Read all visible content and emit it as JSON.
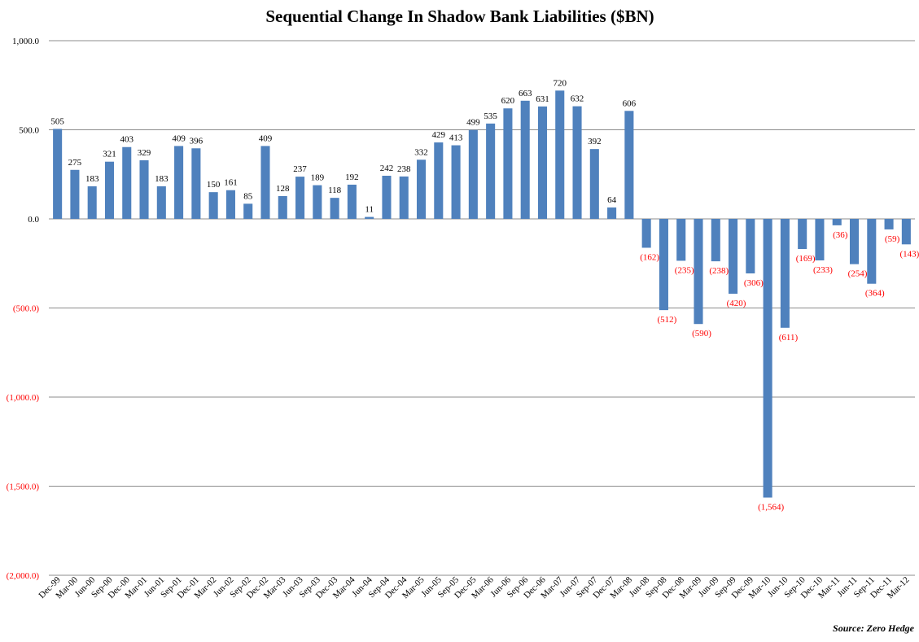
{
  "chart_data": {
    "type": "bar",
    "title": "Sequential Change In Shadow Bank Liabilities ($BN)",
    "source": "Source: Zero Hedge",
    "ylim": [
      -2000,
      1000
    ],
    "y_ticks": [
      {
        "value": 1000,
        "label": "1,000.0"
      },
      {
        "value": 500,
        "label": "500.0"
      },
      {
        "value": 0,
        "label": "0.0"
      },
      {
        "value": -500,
        "label": "(500.0)"
      },
      {
        "value": -1000,
        "label": "(1,000.0)"
      },
      {
        "value": -1500,
        "label": "(1,500.0)"
      },
      {
        "value": -2000,
        "label": "(2,000.0)"
      }
    ],
    "categories": [
      "Dec-99",
      "Mar-00",
      "Jun-00",
      "Sep-00",
      "Dec-00",
      "Mar-01",
      "Jun-01",
      "Sep-01",
      "Dec-01",
      "Mar-02",
      "Jun-02",
      "Sep-02",
      "Dec-02",
      "Mar-03",
      "Jun-03",
      "Sep-03",
      "Dec-03",
      "Mar-04",
      "Jun-04",
      "Sep-04",
      "Dec-04",
      "Mar-05",
      "Jun-05",
      "Sep-05",
      "Dec-05",
      "Mar-06",
      "Jun-06",
      "Sep-06",
      "Dec-06",
      "Mar-07",
      "Jun-07",
      "Sep-07",
      "Dec-07",
      "Mar-08",
      "Jun-08",
      "Sep-08",
      "Dec-08",
      "Mar-09",
      "Jun-09",
      "Sep-09",
      "Dec-09",
      "Mar-10",
      "Jun-10",
      "Sep-10",
      "Dec-10",
      "Mar-11",
      "Jun-11",
      "Sep-11",
      "Dec-11",
      "Mar-12"
    ],
    "values": [
      505,
      275,
      183,
      321,
      403,
      329,
      183,
      409,
      396,
      150,
      161,
      85,
      409,
      128,
      237,
      189,
      118,
      192,
      11,
      242,
      238,
      332,
      429,
      413,
      499,
      535,
      620,
      663,
      631,
      720,
      632,
      392,
      64,
      606,
      -162,
      -512,
      -235,
      -590,
      -238,
      -420,
      -306,
      -1564,
      -611,
      -169,
      -233,
      -36,
      -254,
      -364,
      -59,
      -143
    ],
    "value_labels": [
      "505",
      "275",
      "183",
      "321",
      "403",
      "329",
      "183",
      "409",
      "396",
      "150",
      "161",
      "85",
      "409",
      "128",
      "237",
      "189",
      "118",
      "192",
      "11",
      "242",
      "238",
      "332",
      "429",
      "413",
      "499",
      "535",
      "620",
      "663",
      "631",
      "720",
      "632",
      "392",
      "64",
      "606",
      "(162)",
      "(512)",
      "(235)",
      "(590)",
      "(238)",
      "(420)",
      "(306)",
      "(1,564)",
      "(611)",
      "(169)",
      "(233)",
      "(36)",
      "(254)",
      "(364)",
      "(59)",
      "(143)"
    ],
    "colors": {
      "bar": "#4f81bd",
      "negative_text": "#ff0000",
      "positive_text": "#000000",
      "grid": "#8c8c8c"
    }
  }
}
